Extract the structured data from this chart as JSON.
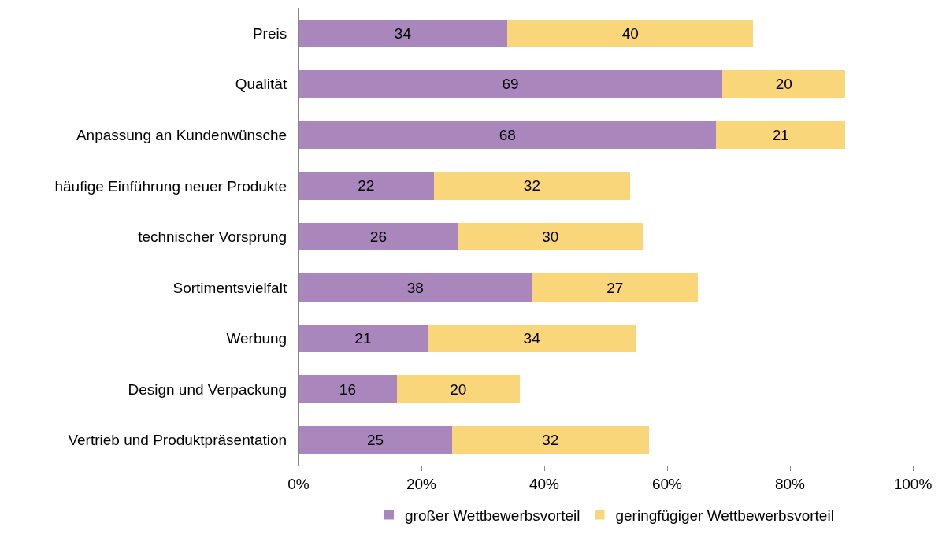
{
  "chart_data": {
    "type": "bar",
    "orientation": "horizontal",
    "stacked": true,
    "data_labels": true,
    "categories": [
      "Preis",
      "Qualität",
      "Anpassung an Kundenwünsche",
      "häufige Einführung neuer Produkte",
      "technischer Vorsprung",
      "Sortimentsvielfalt",
      "Werbung",
      "Design und Verpackung",
      "Vertrieb und Produktpräsentation"
    ],
    "series": [
      {
        "name": "großer Wettbewerbsvorteil",
        "color": "#a987bc",
        "values": [
          34,
          69,
          68,
          22,
          26,
          38,
          21,
          16,
          25
        ]
      },
      {
        "name": "geringfügiger Wettbewerbsvorteil",
        "color": "#f9d67a",
        "values": [
          40,
          20,
          21,
          32,
          30,
          27,
          34,
          20,
          32
        ]
      }
    ],
    "xlim": [
      0,
      100
    ],
    "xticks": [
      {
        "value": 0,
        "label": "0%"
      },
      {
        "value": 20,
        "label": "20%"
      },
      {
        "value": 40,
        "label": "40%"
      },
      {
        "value": 60,
        "label": "60%"
      },
      {
        "value": 80,
        "label": "80%"
      },
      {
        "value": 100,
        "label": "100%"
      }
    ],
    "legend": "bottom"
  }
}
